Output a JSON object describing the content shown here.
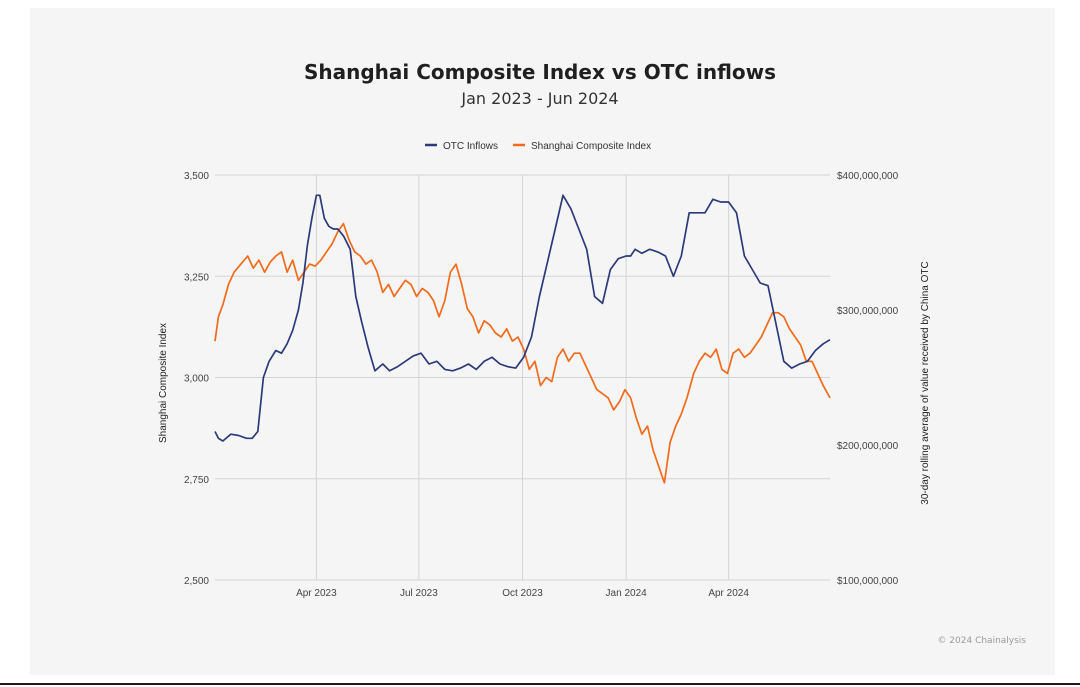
{
  "chart_data": {
    "type": "line",
    "title": "Shanghai Composite Index vs OTC inflows",
    "subtitle": "Jan 2023 - Jun 2024",
    "credit": "© 2024 Chainalysis",
    "legend": {
      "placement": "top-center",
      "entries": [
        "OTC Inflows",
        "Shanghai Composite Index"
      ]
    },
    "grid": true,
    "x_axis": {
      "type": "date",
      "range": [
        "2023-01-01",
        "2024-06-30"
      ],
      "ticks": [
        {
          "date": "2023-04-01",
          "label": "Apr 2023"
        },
        {
          "date": "2023-07-01",
          "label": "Jul 2023"
        },
        {
          "date": "2023-10-01",
          "label": "Oct 2023"
        },
        {
          "date": "2024-01-01",
          "label": "Jan 2024"
        },
        {
          "date": "2024-04-01",
          "label": "Apr 2024"
        }
      ]
    },
    "y_left": {
      "label": "Shanghai Composite Index",
      "range": [
        2500,
        3500
      ],
      "ticks": [
        2500,
        2750,
        3000,
        3250,
        3500
      ],
      "tick_labels": [
        "2,500",
        "2,750",
        "3,000",
        "3,250",
        "3,500"
      ]
    },
    "y_right": {
      "label": "30-day rolling average of value received by China OTC",
      "range": [
        100000000,
        400000000
      ],
      "ticks": [
        100000000,
        200000000,
        300000000,
        400000000
      ],
      "tick_labels": [
        "$100,000,000",
        "$200,000,000",
        "$300,000,000",
        "$400,000,000"
      ]
    },
    "series": [
      {
        "name": "OTC Inflows",
        "axis": "right",
        "color": "#2c3a7a",
        "x": [
          "2023-01-01",
          "2023-01-04",
          "2023-01-08",
          "2023-01-15",
          "2023-01-22",
          "2023-01-29",
          "2023-02-03",
          "2023-02-08",
          "2023-02-13",
          "2023-02-18",
          "2023-02-24",
          "2023-03-01",
          "2023-03-06",
          "2023-03-11",
          "2023-03-16",
          "2023-03-20",
          "2023-03-24",
          "2023-03-28",
          "2023-04-01",
          "2023-04-04",
          "2023-04-08",
          "2023-04-12",
          "2023-04-16",
          "2023-04-20",
          "2023-04-25",
          "2023-05-01",
          "2023-05-06",
          "2023-05-11",
          "2023-05-17",
          "2023-05-23",
          "2023-05-30",
          "2023-06-05",
          "2023-06-12",
          "2023-06-19",
          "2023-06-26",
          "2023-07-03",
          "2023-07-10",
          "2023-07-17",
          "2023-07-24",
          "2023-07-31",
          "2023-08-07",
          "2023-08-14",
          "2023-08-21",
          "2023-08-28",
          "2023-09-04",
          "2023-09-11",
          "2023-09-18",
          "2023-09-25",
          "2023-10-02",
          "2023-10-09",
          "2023-10-16",
          "2023-10-23",
          "2023-10-30",
          "2023-11-06",
          "2023-11-13",
          "2023-11-20",
          "2023-11-27",
          "2023-12-04",
          "2023-12-11",
          "2023-12-18",
          "2023-12-25",
          "2024-01-01",
          "2024-01-05",
          "2024-01-09",
          "2024-01-15",
          "2024-01-22",
          "2024-01-29",
          "2024-02-05",
          "2024-02-12",
          "2024-02-19",
          "2024-02-26",
          "2024-03-04",
          "2024-03-11",
          "2024-03-18",
          "2024-03-25",
          "2024-04-01",
          "2024-04-08",
          "2024-04-15",
          "2024-04-22",
          "2024-04-29",
          "2024-05-06",
          "2024-05-13",
          "2024-05-20",
          "2024-05-27",
          "2024-06-03",
          "2024-06-10",
          "2024-06-17",
          "2024-06-24",
          "2024-06-30"
        ],
        "values": [
          210000000,
          205000000,
          203000000,
          208000000,
          207000000,
          205000000,
          205000000,
          210000000,
          250000000,
          262000000,
          270000000,
          268000000,
          275000000,
          285000000,
          300000000,
          320000000,
          348000000,
          368000000,
          385000000,
          385000000,
          368000000,
          362000000,
          360000000,
          360000000,
          355000000,
          345000000,
          310000000,
          292000000,
          272000000,
          255000000,
          260000000,
          255000000,
          258000000,
          262000000,
          266000000,
          268000000,
          260000000,
          262000000,
          256000000,
          255000000,
          257000000,
          260000000,
          256000000,
          262000000,
          265000000,
          260000000,
          258000000,
          257000000,
          265000000,
          280000000,
          310000000,
          335000000,
          360000000,
          385000000,
          375000000,
          360000000,
          345000000,
          310000000,
          305000000,
          330000000,
          338000000,
          340000000,
          340000000,
          345000000,
          342000000,
          345000000,
          343000000,
          340000000,
          325000000,
          340000000,
          372000000,
          372000000,
          372000000,
          382000000,
          380000000,
          380000000,
          372000000,
          340000000,
          330000000,
          320000000,
          318000000,
          290000000,
          262000000,
          257000000,
          260000000,
          262000000,
          270000000,
          275000000,
          278000000
        ]
      },
      {
        "name": "Shanghai Composite Index",
        "axis": "left",
        "color": "#f26a1b",
        "x": [
          "2023-01-01",
          "2023-01-04",
          "2023-01-08",
          "2023-01-13",
          "2023-01-18",
          "2023-01-24",
          "2023-01-30",
          "2023-02-04",
          "2023-02-09",
          "2023-02-14",
          "2023-02-19",
          "2023-02-24",
          "2023-03-01",
          "2023-03-06",
          "2023-03-11",
          "2023-03-16",
          "2023-03-21",
          "2023-03-26",
          "2023-03-31",
          "2023-04-05",
          "2023-04-10",
          "2023-04-15",
          "2023-04-20",
          "2023-04-25",
          "2023-04-30",
          "2023-05-05",
          "2023-05-10",
          "2023-05-15",
          "2023-05-20",
          "2023-05-25",
          "2023-05-30",
          "2023-06-04",
          "2023-06-09",
          "2023-06-14",
          "2023-06-19",
          "2023-06-24",
          "2023-06-29",
          "2023-07-04",
          "2023-07-09",
          "2023-07-14",
          "2023-07-19",
          "2023-07-24",
          "2023-07-29",
          "2023-08-03",
          "2023-08-08",
          "2023-08-13",
          "2023-08-18",
          "2023-08-23",
          "2023-08-28",
          "2023-09-02",
          "2023-09-07",
          "2023-09-12",
          "2023-09-17",
          "2023-09-22",
          "2023-09-27",
          "2023-10-02",
          "2023-10-07",
          "2023-10-12",
          "2023-10-17",
          "2023-10-22",
          "2023-10-27",
          "2023-11-01",
          "2023-11-06",
          "2023-11-11",
          "2023-11-16",
          "2023-11-21",
          "2023-11-26",
          "2023-12-01",
          "2023-12-06",
          "2023-12-11",
          "2023-12-16",
          "2023-12-21",
          "2023-12-26",
          "2023-12-31",
          "2024-01-05",
          "2024-01-10",
          "2024-01-15",
          "2024-01-20",
          "2024-01-25",
          "2024-01-30",
          "2024-02-04",
          "2024-02-09",
          "2024-02-14",
          "2024-02-19",
          "2024-02-24",
          "2024-03-01",
          "2024-03-06",
          "2024-03-11",
          "2024-03-16",
          "2024-03-21",
          "2024-03-26",
          "2024-03-31",
          "2024-04-05",
          "2024-04-10",
          "2024-04-15",
          "2024-04-20",
          "2024-04-25",
          "2024-04-30",
          "2024-05-05",
          "2024-05-10",
          "2024-05-15",
          "2024-05-20",
          "2024-05-25",
          "2024-05-30",
          "2024-06-04",
          "2024-06-09",
          "2024-06-14",
          "2024-06-19",
          "2024-06-24",
          "2024-06-30"
        ],
        "values": [
          3090,
          3150,
          3180,
          3230,
          3260,
          3280,
          3300,
          3270,
          3290,
          3260,
          3285,
          3300,
          3310,
          3260,
          3290,
          3240,
          3260,
          3280,
          3275,
          3290,
          3310,
          3330,
          3360,
          3380,
          3340,
          3310,
          3300,
          3280,
          3290,
          3260,
          3210,
          3230,
          3200,
          3220,
          3240,
          3230,
          3200,
          3220,
          3210,
          3190,
          3150,
          3190,
          3260,
          3280,
          3230,
          3170,
          3150,
          3110,
          3140,
          3130,
          3110,
          3100,
          3120,
          3090,
          3100,
          3070,
          3020,
          3040,
          2980,
          3000,
          2990,
          3050,
          3070,
          3040,
          3060,
          3060,
          3030,
          3000,
          2970,
          2960,
          2950,
          2920,
          2940,
          2970,
          2950,
          2900,
          2860,
          2880,
          2820,
          2780,
          2740,
          2840,
          2880,
          2910,
          2950,
          3010,
          3040,
          3060,
          3050,
          3070,
          3020,
          3010,
          3060,
          3070,
          3050,
          3060,
          3080,
          3100,
          3130,
          3160,
          3160,
          3150,
          3120,
          3100,
          3080,
          3040,
          3040,
          3010,
          2980,
          2950
        ]
      }
    ]
  }
}
